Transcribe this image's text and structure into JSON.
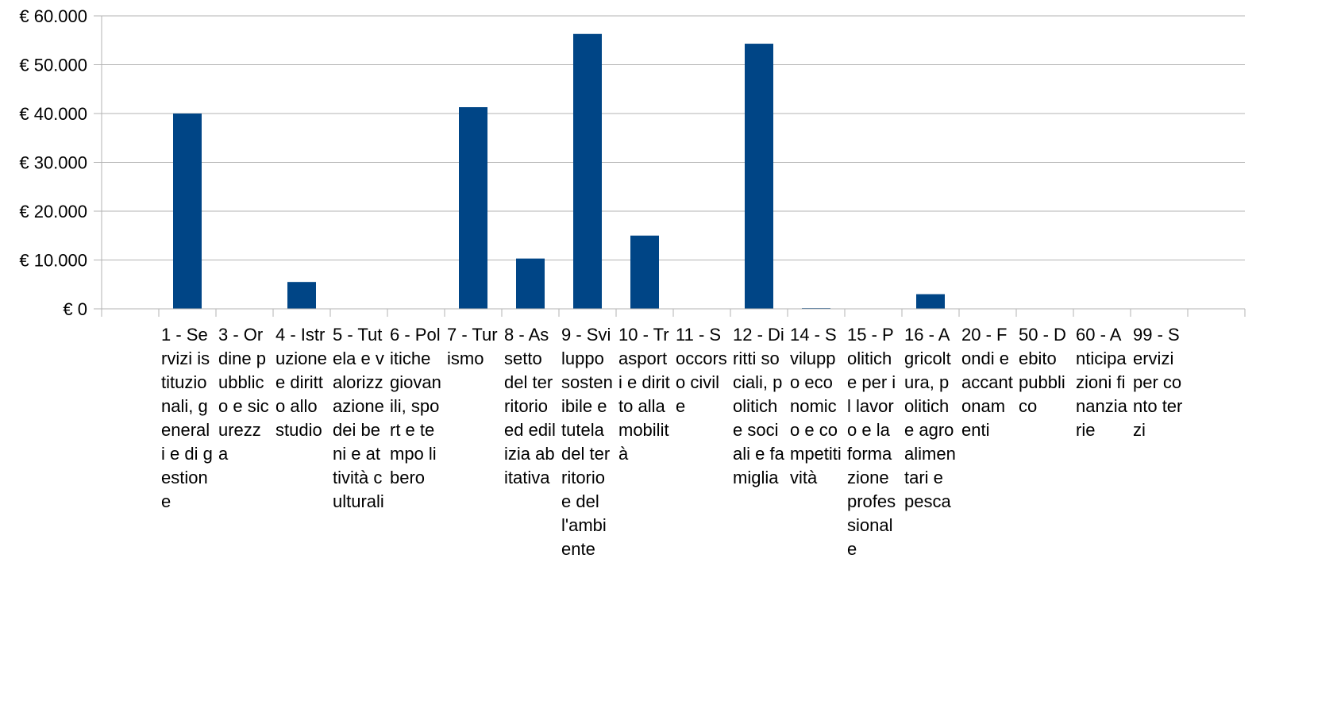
{
  "chart_data": {
    "type": "bar",
    "title": "",
    "xlabel": "",
    "ylabel": "",
    "ylim": [
      0,
      60000
    ],
    "ytick_values": [
      0,
      10000,
      20000,
      30000,
      40000,
      50000,
      60000
    ],
    "ytick_labels": [
      "€ 0",
      "€ 10.000",
      "€ 20.000",
      "€ 30.000",
      "€ 40.000",
      "€ 50.000",
      "€ 60.000"
    ],
    "grid": true,
    "legend": "none",
    "bar_color": "#004586",
    "categories": [
      "1 - Servizi istituzionali, generali e di gestione",
      "3 - Ordine pubblico e sicurezza",
      "4 - Istruzione e diritto allo studio",
      "5 - Tutela e valorizzazione dei beni e attività culturali",
      "6 - Politiche giovanili, sport e tempo libero",
      "7 - Turismo",
      "8 - Assetto del territorio ed edilizia abitativa",
      "9 - Sviluppo sostenibile e tutela del territorio e dell'ambiente",
      "10 - Trasporti e diritto alla mobilità",
      "11 - Soccorso civile",
      "12 - Diritti sociali, politiche sociali e famiglia",
      "14 - Sviluppo economico e competitività",
      "15 - Politiche per il lavoro e la formazione professionale",
      "16 - Agricoltura, politiche agroalimentari e pesca",
      "20 - Fondi e accantonamenti",
      "50 - Debito pubblico",
      "60 - Anticipazioni finanziarie",
      "99 - Servizi per conto terzi"
    ],
    "values": [
      40000,
      0,
      5500,
      0,
      0,
      41300,
      10300,
      56300,
      15000,
      0,
      54300,
      150,
      0,
      3000,
      0,
      0,
      0,
      0
    ]
  }
}
